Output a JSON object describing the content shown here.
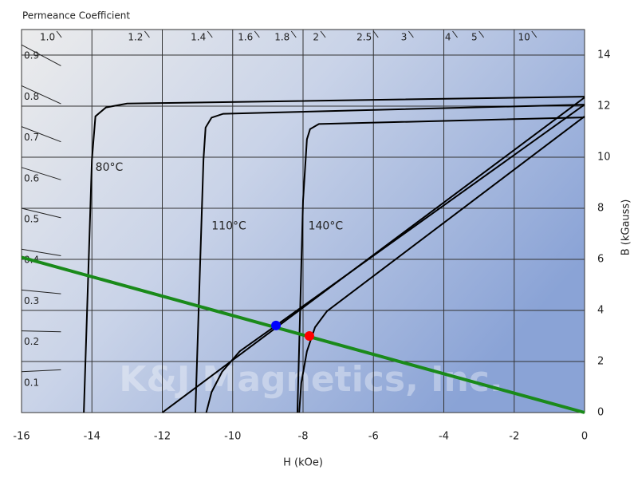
{
  "chart_data": {
    "type": "line",
    "title": "Permeance Coefficient",
    "x_label": "H (kOe)",
    "y_label": "B (kGauss)",
    "watermark": "K&J Magnetics, Inc.",
    "xlim": [
      -16,
      0
    ],
    "ylim": [
      0,
      15
    ],
    "xticks": [
      -16,
      -14,
      -12,
      -10,
      -8,
      -6,
      -4,
      -2,
      0
    ],
    "yticks": [
      0,
      2,
      4,
      6,
      8,
      10,
      12,
      14
    ],
    "grid": true,
    "permeance_left": [
      0.1,
      0.2,
      0.3,
      0.4,
      0.5,
      0.6,
      0.7,
      0.8,
      0.9
    ],
    "permeance_top": [
      {
        "value": 1,
        "label": "1.0"
      },
      1.2,
      1.4,
      1.6,
      1.8,
      2,
      2.5,
      3,
      4,
      5,
      10
    ],
    "series": [
      {
        "color": "#000000",
        "x": [
          0,
          -13,
          -13.6,
          -13.9,
          -14.0,
          -14.23
        ],
        "values": [
          12.37,
          12.1,
          11.95,
          11.6,
          9.9,
          0
        ]
      },
      {
        "color": "#000000",
        "x": [
          0,
          -12
        ],
        "values": [
          12.34,
          0
        ]
      },
      {
        "color": "#000000",
        "x": [
          0,
          -10.27,
          -10.6,
          -10.77,
          -10.83,
          -11.06
        ],
        "values": [
          12.06,
          11.7,
          11.55,
          11.16,
          9.9,
          0
        ]
      },
      {
        "color": "#000000",
        "x": [
          0,
          -8.77,
          -9.8,
          -10.3,
          -10.6,
          -10.75
        ],
        "values": [
          12.06,
          3.41,
          2.4,
          1.6,
          0.8,
          0
        ]
      },
      {
        "color": "#000000",
        "x": [
          0,
          -7.55,
          -7.8,
          -7.89,
          -8.0,
          -8.16
        ],
        "values": [
          11.56,
          11.3,
          11.1,
          10.7,
          8.3,
          0
        ]
      },
      {
        "color": "#000000",
        "x": [
          0,
          -7.32,
          -7.66,
          -7.89,
          -8.05,
          -8.11
        ],
        "values": [
          11.6,
          3.97,
          3.34,
          2.4,
          1.16,
          0
        ]
      },
      {
        "color": "#1a8a1a",
        "x": [
          -16,
          0
        ],
        "values": [
          6.08,
          0
        ]
      },
      {
        "color": "#0000ff",
        "marker": true,
        "x": [
          -8.77
        ],
        "values": [
          3.41
        ]
      },
      {
        "color": "#ff0000",
        "marker": true,
        "x": [
          -7.82
        ],
        "values": [
          3.0
        ]
      }
    ],
    "annotations": [
      "80°C",
      "110°C",
      "140°C"
    ]
  }
}
